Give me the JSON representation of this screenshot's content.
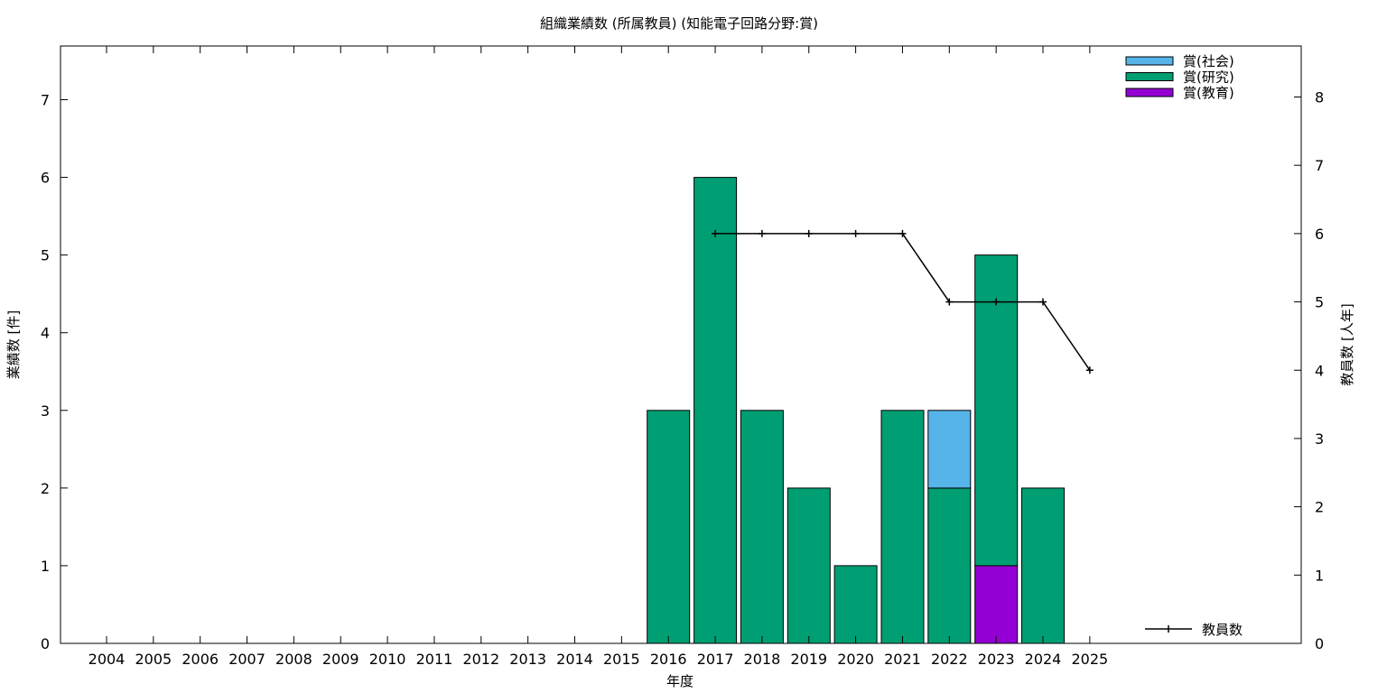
{
  "chart_data": {
    "type": "bar",
    "title": "組織業績数 (所属教員) (知能電子回路分野:賞)",
    "xlabel": "年度",
    "ylabel": "業績数 [件]",
    "y2label": "教員数 [人年]",
    "categories": [
      "2004",
      "2005",
      "2006",
      "2007",
      "2008",
      "2009",
      "2010",
      "2011",
      "2012",
      "2013",
      "2014",
      "2015",
      "2016",
      "2017",
      "2018",
      "2019",
      "2020",
      "2021",
      "2022",
      "2023",
      "2024",
      "2025"
    ],
    "ylim": [
      0,
      7.7
    ],
    "yticks": [
      0,
      1,
      2,
      3,
      4,
      5,
      6,
      7
    ],
    "y2lim": [
      0,
      8.8
    ],
    "y2ticks": [
      0,
      1,
      2,
      3,
      4,
      5,
      6,
      7,
      8
    ],
    "stacked": true,
    "series": [
      {
        "name": "賞(教育)",
        "color": "#9400d3",
        "values": [
          0,
          0,
          0,
          0,
          0,
          0,
          0,
          0,
          0,
          0,
          0,
          0,
          0,
          0,
          0,
          0,
          0,
          0,
          0,
          1,
          0,
          0
        ]
      },
      {
        "name": "賞(研究)",
        "color": "#009e73",
        "values": [
          0,
          0,
          0,
          0,
          0,
          0,
          0,
          0,
          0,
          0,
          0,
          0,
          3,
          6,
          3,
          2,
          1,
          3,
          2,
          4,
          2,
          0
        ]
      },
      {
        "name": "賞(社会)",
        "color": "#56b4e9",
        "values": [
          0,
          0,
          0,
          0,
          0,
          0,
          0,
          0,
          0,
          0,
          0,
          0,
          0,
          0,
          0,
          0,
          0,
          0,
          1,
          0,
          0,
          0
        ]
      }
    ],
    "line": {
      "name": "教員数",
      "axis": "right",
      "color": "#000000",
      "x": [
        "2017",
        "2018",
        "2019",
        "2020",
        "2021",
        "2022",
        "2023",
        "2024",
        "2025"
      ],
      "values": [
        6,
        6,
        6,
        6,
        6,
        5,
        5,
        5,
        4
      ]
    },
    "legend_order": [
      "賞(社会)",
      "賞(研究)",
      "賞(教育)"
    ],
    "legend": "top-right",
    "grid": false
  }
}
